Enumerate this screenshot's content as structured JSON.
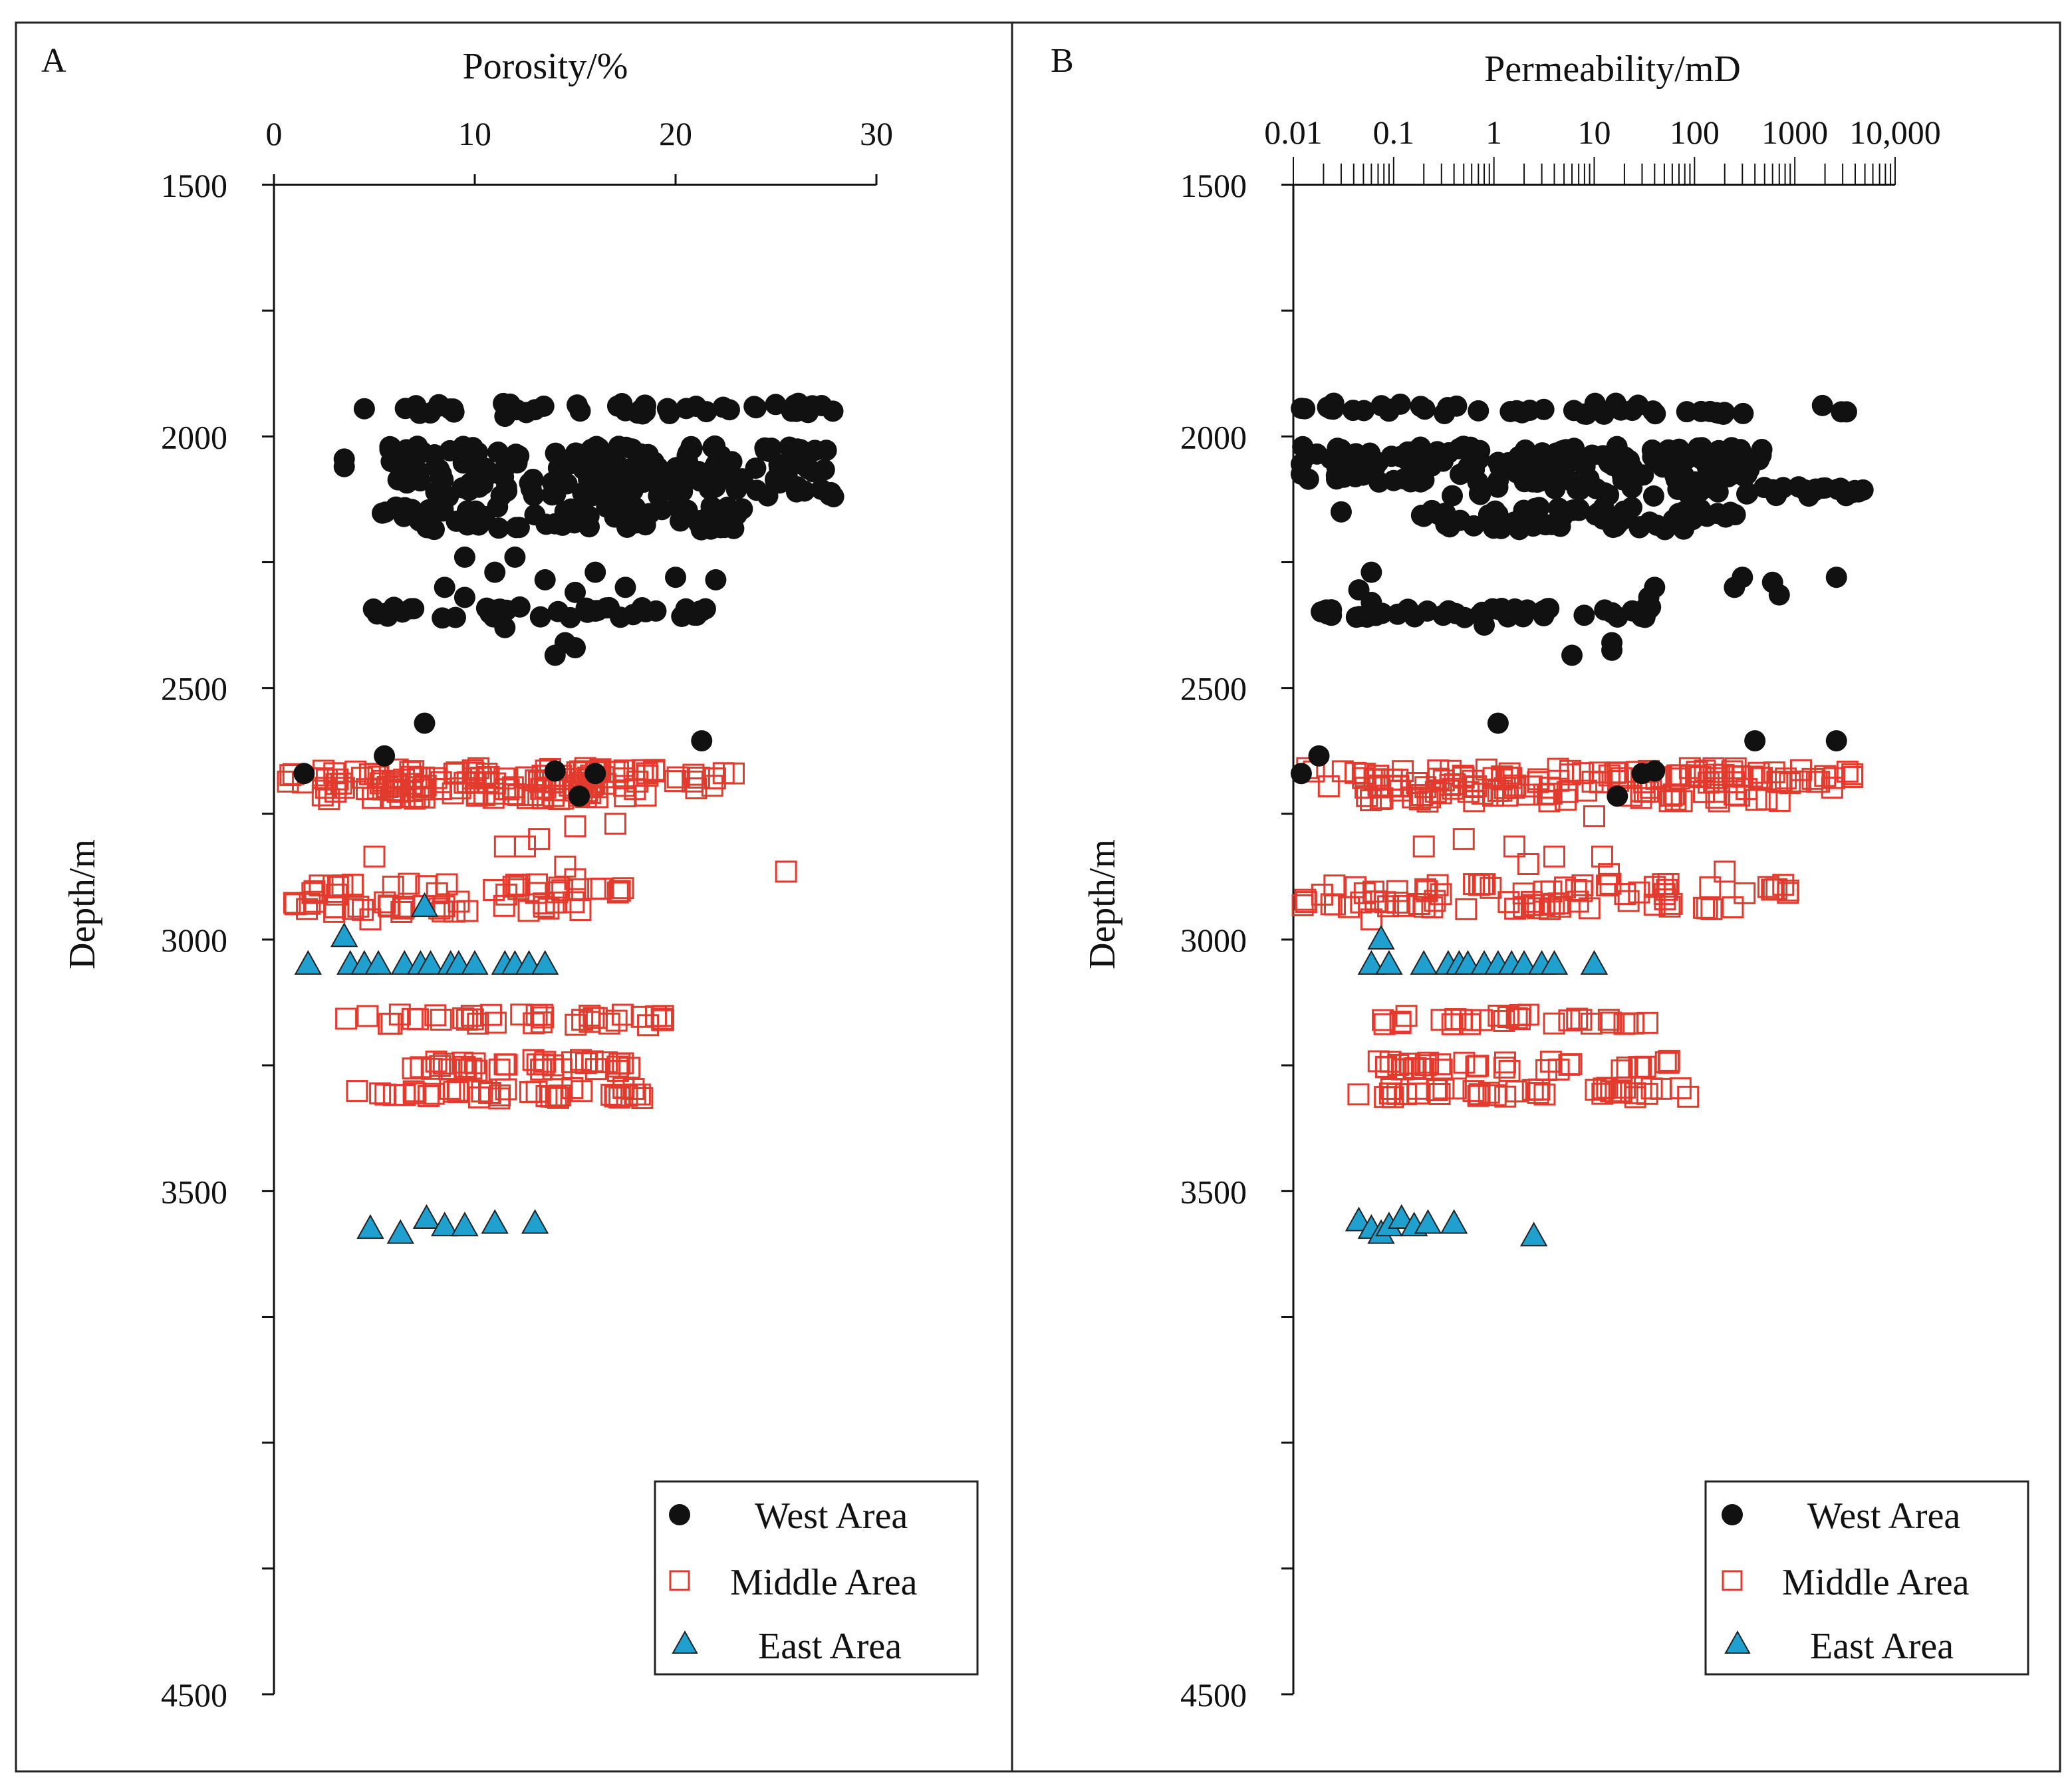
{
  "chart_data": [
    {
      "type": "scatter",
      "panel_label": "A",
      "title": "",
      "xlabel": "Porosity/%",
      "ylabel": "Depth/m",
      "xlim": [
        0,
        30
      ],
      "ylim": [
        1500,
        4500
      ],
      "x_ticks": [
        0,
        10,
        20,
        30
      ],
      "x_tick_labels": [
        "0",
        "10",
        "20",
        "30"
      ],
      "y_ticks": [
        1500,
        2000,
        2500,
        3000,
        3500,
        4500
      ],
      "y_tick_labels": [
        "1500",
        "2000",
        "2500",
        "3000",
        "3500",
        "4500"
      ],
      "grid": false,
      "legend_position": "bottom-right",
      "legend": [
        "West Area",
        "Middle Area",
        "East Area"
      ],
      "series": [
        {
          "name": "West Area",
          "marker": "circle",
          "color": "#111111",
          "bands": [
            {
              "depth": 1945,
              "xmin": 6.5,
              "xmax": 28.5,
              "n": 45
            },
            {
              "depth": 2030,
              "xmin": 5.5,
              "xmax": 28.0,
              "n": 50
            },
            {
              "depth": 2060,
              "xmin": 5.5,
              "xmax": 27.5,
              "n": 50
            },
            {
              "depth": 2085,
              "xmin": 6.0,
              "xmax": 27.0,
              "n": 45
            },
            {
              "depth": 2110,
              "xmin": 8.0,
              "xmax": 28.5,
              "n": 42
            },
            {
              "depth": 2150,
              "xmin": 5.0,
              "xmax": 24.0,
              "n": 45
            },
            {
              "depth": 2175,
              "xmin": 7.0,
              "xmax": 24.0,
              "n": 40
            },
            {
              "depth": 2350,
              "xmin": 3.5,
              "xmax": 21.5,
              "n": 40
            }
          ],
          "points": [
            {
              "x": 4.5,
              "y": 1945
            },
            {
              "x": 3.5,
              "y": 2045
            },
            {
              "x": 3.5,
              "y": 2060
            },
            {
              "x": 11.5,
              "y": 1960
            },
            {
              "x": 9.5,
              "y": 2240
            },
            {
              "x": 12,
              "y": 2240
            },
            {
              "x": 11,
              "y": 2270
            },
            {
              "x": 13.5,
              "y": 2285
            },
            {
              "x": 16,
              "y": 2270
            },
            {
              "x": 8.5,
              "y": 2300
            },
            {
              "x": 9.5,
              "y": 2320
            },
            {
              "x": 15,
              "y": 2310
            },
            {
              "x": 17.5,
              "y": 2300
            },
            {
              "x": 20,
              "y": 2280
            },
            {
              "x": 22,
              "y": 2285
            },
            {
              "x": 11.5,
              "y": 2380
            },
            {
              "x": 14.5,
              "y": 2410
            },
            {
              "x": 14,
              "y": 2435
            },
            {
              "x": 15,
              "y": 2420
            },
            {
              "x": 7.5,
              "y": 2570
            },
            {
              "x": 5.5,
              "y": 2635
            },
            {
              "x": 21.3,
              "y": 2605
            },
            {
              "x": 1.5,
              "y": 2670
            },
            {
              "x": 14,
              "y": 2665
            },
            {
              "x": 16,
              "y": 2670
            },
            {
              "x": 15.2,
              "y": 2715
            }
          ]
        },
        {
          "name": "Middle Area",
          "marker": "open-square",
          "color": "#e33a2e",
          "bands": [
            {
              "depth": 2670,
              "xmin": 0.5,
              "xmax": 23.0,
              "n": 55
            },
            {
              "depth": 2690,
              "xmin": 0.5,
              "xmax": 22.5,
              "n": 55
            },
            {
              "depth": 2710,
              "xmin": 2.0,
              "xmax": 19.0,
              "n": 45
            },
            {
              "depth": 2900,
              "xmin": 1.5,
              "xmax": 17.5,
              "n": 30
            },
            {
              "depth": 2935,
              "xmin": 0.8,
              "xmax": 16.5,
              "n": 30
            },
            {
              "depth": 3160,
              "xmin": 3.5,
              "xmax": 20.0,
              "n": 38
            },
            {
              "depth": 3250,
              "xmin": 6.0,
              "xmax": 18.5,
              "n": 35
            },
            {
              "depth": 3305,
              "xmin": 4.0,
              "xmax": 18.5,
              "n": 40
            }
          ],
          "points": [
            {
              "x": 5.0,
              "y": 2835
            },
            {
              "x": 11.5,
              "y": 2815
            },
            {
              "x": 12.5,
              "y": 2815
            },
            {
              "x": 13.2,
              "y": 2800
            },
            {
              "x": 15.0,
              "y": 2775
            },
            {
              "x": 17.0,
              "y": 2770
            },
            {
              "x": 14.5,
              "y": 2855
            },
            {
              "x": 15.0,
              "y": 2880
            },
            {
              "x": 25.5,
              "y": 2865
            },
            {
              "x": 4.8,
              "y": 2960
            },
            {
              "x": 3.0,
              "y": 2945
            }
          ]
        },
        {
          "name": "East Area",
          "marker": "triangle",
          "color": "#1fa0cf",
          "points": [
            {
              "x": 7.5,
              "y": 2935
            },
            {
              "x": 3.5,
              "y": 2995
            },
            {
              "x": 1.7,
              "y": 3050
            },
            {
              "x": 3.8,
              "y": 3050
            },
            {
              "x": 4.5,
              "y": 3050
            },
            {
              "x": 5.2,
              "y": 3050
            },
            {
              "x": 6.5,
              "y": 3050
            },
            {
              "x": 7.3,
              "y": 3050
            },
            {
              "x": 7.8,
              "y": 3050
            },
            {
              "x": 8.8,
              "y": 3050
            },
            {
              "x": 9.2,
              "y": 3050
            },
            {
              "x": 10.0,
              "y": 3050
            },
            {
              "x": 11.5,
              "y": 3050
            },
            {
              "x": 12.0,
              "y": 3050
            },
            {
              "x": 12.7,
              "y": 3050
            },
            {
              "x": 13.5,
              "y": 3050
            },
            {
              "x": 4.8,
              "y": 3575
            },
            {
              "x": 6.3,
              "y": 3585
            },
            {
              "x": 7.6,
              "y": 3555
            },
            {
              "x": 8.5,
              "y": 3570
            },
            {
              "x": 9.5,
              "y": 3570
            },
            {
              "x": 11.0,
              "y": 3565
            },
            {
              "x": 13.0,
              "y": 3565
            }
          ]
        }
      ]
    },
    {
      "type": "scatter",
      "panel_label": "B",
      "title": "",
      "xlabel": "Permeability/mD",
      "ylabel": "Depth/m",
      "xscale": "log",
      "xlim": [
        0.01,
        10000
      ],
      "ylim": [
        1500,
        4500
      ],
      "x_ticks": [
        0.01,
        0.1,
        1,
        10,
        100,
        1000,
        10000
      ],
      "x_tick_labels": [
        "0.01",
        "0.1",
        "1",
        "10",
        "100",
        "1000",
        "10,000"
      ],
      "y_ticks": [
        1500,
        2000,
        2500,
        3000,
        3500,
        4500
      ],
      "y_tick_labels": [
        "1500",
        "2000",
        "2500",
        "3000",
        "3500",
        "4500"
      ],
      "grid": false,
      "legend_position": "bottom-right",
      "legend": [
        "West Area",
        "Middle Area",
        "East Area"
      ],
      "series": [
        {
          "name": "West Area",
          "marker": "circle",
          "color": "#111111",
          "bands": [
            {
              "depth": 1945,
              "xmin": 0.012,
              "xmax": 4000,
              "n": 45
            },
            {
              "depth": 2030,
              "xmin": 0.012,
              "xmax": 800,
              "n": 50
            },
            {
              "depth": 2055,
              "xmin": 0.012,
              "xmax": 500,
              "n": 50
            },
            {
              "depth": 2080,
              "xmin": 0.013,
              "xmax": 400,
              "n": 45
            },
            {
              "depth": 2110,
              "xmin": 0.3,
              "xmax": 5000,
              "n": 40
            },
            {
              "depth": 2150,
              "xmin": 0.15,
              "xmax": 300,
              "n": 40
            },
            {
              "depth": 2175,
              "xmin": 0.3,
              "xmax": 100,
              "n": 35
            },
            {
              "depth": 2350,
              "xmin": 0.018,
              "xmax": 45,
              "n": 45
            }
          ],
          "points": [
            {
              "x": 0.013,
              "y": 1945
            },
            {
              "x": 0.012,
              "y": 2055
            },
            {
              "x": 0.012,
              "y": 2075
            },
            {
              "x": 0.03,
              "y": 2150
            },
            {
              "x": 0.06,
              "y": 2270
            },
            {
              "x": 0.045,
              "y": 2305
            },
            {
              "x": 0.06,
              "y": 2330
            },
            {
              "x": 0.8,
              "y": 2375
            },
            {
              "x": 40,
              "y": 2300
            },
            {
              "x": 35,
              "y": 2320
            },
            {
              "x": 300,
              "y": 2280
            },
            {
              "x": 250,
              "y": 2300
            },
            {
              "x": 600,
              "y": 2290
            },
            {
              "x": 700,
              "y": 2315
            },
            {
              "x": 2600,
              "y": 2280
            },
            {
              "x": 15,
              "y": 2410
            },
            {
              "x": 15,
              "y": 2425
            },
            {
              "x": 6,
              "y": 2435
            },
            {
              "x": 1.1,
              "y": 2570
            },
            {
              "x": 0.018,
              "y": 2635
            },
            {
              "x": 0.012,
              "y": 2670
            },
            {
              "x": 400,
              "y": 2605
            },
            {
              "x": 2600,
              "y": 2605
            },
            {
              "x": 30,
              "y": 2670
            },
            {
              "x": 40,
              "y": 2665
            },
            {
              "x": 17,
              "y": 2715
            }
          ]
        },
        {
          "name": "Middle Area",
          "marker": "open-square",
          "color": "#e33a2e",
          "bands": [
            {
              "depth": 2670,
              "xmin": 0.013,
              "xmax": 4000,
              "n": 55
            },
            {
              "depth": 2690,
              "xmin": 0.013,
              "xmax": 3000,
              "n": 55
            },
            {
              "depth": 2715,
              "xmin": 0.04,
              "xmax": 1000,
              "n": 45
            },
            {
              "depth": 2900,
              "xmin": 0.011,
              "xmax": 1200,
              "n": 40
            },
            {
              "depth": 2930,
              "xmin": 0.011,
              "xmax": 300,
              "n": 40
            },
            {
              "depth": 3160,
              "xmin": 0.07,
              "xmax": 40,
              "n": 30
            },
            {
              "depth": 3250,
              "xmin": 0.07,
              "xmax": 60,
              "n": 35
            },
            {
              "depth": 3305,
              "xmin": 0.04,
              "xmax": 100,
              "n": 40
            }
          ],
          "points": [
            {
              "x": 0.2,
              "y": 2815
            },
            {
              "x": 0.5,
              "y": 2800
            },
            {
              "x": 1.6,
              "y": 2815
            },
            {
              "x": 2.2,
              "y": 2850
            },
            {
              "x": 4.0,
              "y": 2835
            },
            {
              "x": 10,
              "y": 2755
            },
            {
              "x": 12,
              "y": 2835
            },
            {
              "x": 14,
              "y": 2870
            },
            {
              "x": 200,
              "y": 2865
            },
            {
              "x": 0.06,
              "y": 2960
            }
          ]
        },
        {
          "name": "East Area",
          "marker": "triangle",
          "color": "#1fa0cf",
          "points": [
            {
              "x": 0.075,
              "y": 3000
            },
            {
              "x": 0.06,
              "y": 3050
            },
            {
              "x": 0.09,
              "y": 3050
            },
            {
              "x": 0.2,
              "y": 3050
            },
            {
              "x": 0.35,
              "y": 3050
            },
            {
              "x": 0.45,
              "y": 3050
            },
            {
              "x": 0.55,
              "y": 3050
            },
            {
              "x": 0.8,
              "y": 3050
            },
            {
              "x": 1.1,
              "y": 3050
            },
            {
              "x": 1.5,
              "y": 3050
            },
            {
              "x": 2.0,
              "y": 3050
            },
            {
              "x": 3.0,
              "y": 3050
            },
            {
              "x": 4.0,
              "y": 3050
            },
            {
              "x": 10,
              "y": 3050
            },
            {
              "x": 0.045,
              "y": 3560
            },
            {
              "x": 0.06,
              "y": 3575
            },
            {
              "x": 0.075,
              "y": 3585
            },
            {
              "x": 0.09,
              "y": 3570
            },
            {
              "x": 0.12,
              "y": 3555
            },
            {
              "x": 0.16,
              "y": 3570
            },
            {
              "x": 0.22,
              "y": 3565
            },
            {
              "x": 0.4,
              "y": 3565
            },
            {
              "x": 2.5,
              "y": 3590
            }
          ]
        }
      ]
    }
  ]
}
